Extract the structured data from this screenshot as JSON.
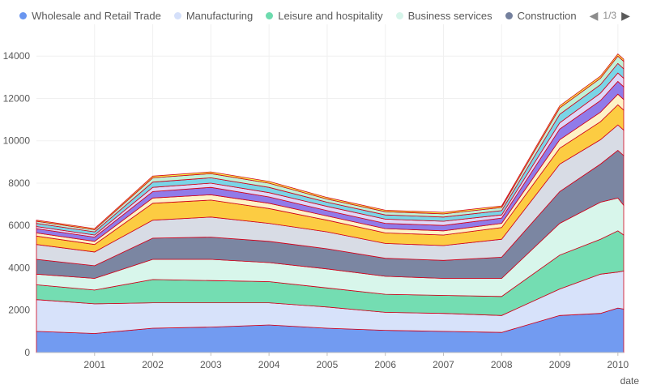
{
  "legend": {
    "page_text": "1/3",
    "prev_icon": "triangle-left-icon",
    "next_icon": "triangle-right-icon"
  },
  "chart_data": {
    "type": "area",
    "stacked": true,
    "xlabel": "date",
    "ylabel": "",
    "x_ticks": [
      "2001",
      "2002",
      "2003",
      "2004",
      "2005",
      "2006",
      "2007",
      "2008",
      "2009",
      "2010"
    ],
    "y_ticks": [
      0,
      2000,
      4000,
      6000,
      8000,
      10000,
      12000,
      14000
    ],
    "xlim": [
      "2000-01",
      "2010-02"
    ],
    "ylim": [
      0,
      15500
    ],
    "grid": true,
    "legend_position": "top",
    "x": [
      2000.0,
      2001.0,
      2002.0,
      2003.0,
      2004.0,
      2005.0,
      2006.0,
      2007.0,
      2008.0,
      2009.0,
      2009.7,
      2010.0,
      2010.1
    ],
    "series": [
      {
        "name": "Wholesale and Retail Trade",
        "color": "#6a96f0",
        "legend": true,
        "values": [
          1000,
          900,
          1150,
          1200,
          1300,
          1150,
          1050,
          1000,
          950,
          1750,
          1850,
          2100,
          2050
        ]
      },
      {
        "name": "Manufacturing",
        "color": "#d5e0fa",
        "legend": true,
        "values": [
          1500,
          1400,
          1200,
          1150,
          1050,
          1000,
          850,
          850,
          800,
          1250,
          1850,
          1700,
          1800
        ]
      },
      {
        "name": "Leisure and hospitality",
        "color": "#6ddbae",
        "legend": true,
        "values": [
          700,
          650,
          1100,
          1050,
          1000,
          900,
          850,
          850,
          900,
          1600,
          1650,
          1950,
          1700
        ]
      },
      {
        "name": "Business services",
        "color": "#d6f5ea",
        "legend": true,
        "values": [
          500,
          550,
          950,
          1000,
          900,
          900,
          850,
          800,
          850,
          1500,
          1750,
          1550,
          1400
        ]
      },
      {
        "name": "Construction",
        "color": "#74809d",
        "legend": true,
        "values": [
          700,
          600,
          1000,
          1050,
          1000,
          950,
          850,
          850,
          1000,
          1500,
          1800,
          2250,
          2350
        ]
      },
      {
        "name": "",
        "color": "#d6dae4",
        "legend": false,
        "values": [
          700,
          650,
          850,
          950,
          850,
          800,
          700,
          700,
          850,
          1300,
          1150,
          1200,
          1200
        ]
      },
      {
        "name": "",
        "color": "#fcc938",
        "legend": false,
        "values": [
          400,
          350,
          800,
          800,
          700,
          550,
          500,
          500,
          550,
          750,
          850,
          950,
          950
        ]
      },
      {
        "name": "",
        "color": "#fef1c2",
        "legend": false,
        "values": [
          150,
          150,
          250,
          250,
          250,
          200,
          200,
          200,
          200,
          400,
          450,
          500,
          500
        ]
      },
      {
        "name": "",
        "color": "#8a74e8",
        "legend": false,
        "values": [
          200,
          200,
          300,
          350,
          300,
          250,
          250,
          250,
          250,
          500,
          550,
          600,
          600
        ]
      },
      {
        "name": "",
        "color": "#dcd6f8",
        "legend": false,
        "values": [
          100,
          100,
          200,
          200,
          200,
          200,
          200,
          200,
          150,
          300,
          350,
          400,
          400
        ]
      },
      {
        "name": "",
        "color": "#73d3e6",
        "legend": false,
        "values": [
          150,
          150,
          250,
          250,
          250,
          200,
          200,
          200,
          200,
          400,
          400,
          450,
          450
        ]
      },
      {
        "name": "",
        "color": "#baf0d4",
        "legend": false,
        "values": [
          100,
          100,
          200,
          200,
          200,
          150,
          150,
          150,
          150,
          300,
          300,
          350,
          350
        ]
      },
      {
        "name": "",
        "color": "#f7f53a",
        "legend": false,
        "values": [
          50,
          50,
          80,
          80,
          80,
          70,
          70,
          70,
          70,
          100,
          100,
          100,
          100
        ]
      }
    ]
  }
}
